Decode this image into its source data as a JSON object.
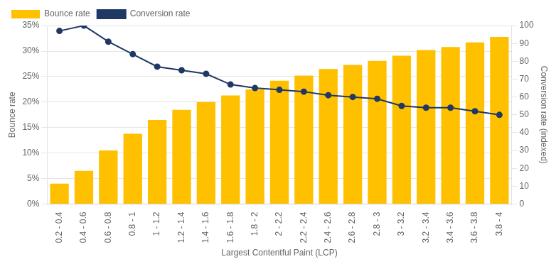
{
  "chart_data": {
    "type": "bar",
    "categories": [
      "0.2 - 0.4",
      "0.4 - 0.6",
      "0.6 - 0.8",
      "0.8 - 1",
      "1 - 1.2",
      "1.2 - 1.4",
      "1.4 - 1.6",
      "1.6 - 1.8",
      "1.8 - 2",
      "2 - 2.2",
      "2.2 - 2.4",
      "2.4 - 2.6",
      "2.6 - 2.8",
      "2.8 - 3",
      "3 - 3.2",
      "3.2 - 3.4",
      "3.4 - 3.6",
      "3.6 - 3.8",
      "3.8 - 4"
    ],
    "series": [
      {
        "name": "Bounce rate",
        "type": "bar",
        "color": "#FFC000",
        "values": [
          0.04,
          0.065,
          0.105,
          0.138,
          0.165,
          0.185,
          0.2,
          0.213,
          0.225,
          0.242,
          0.252,
          0.265,
          0.273,
          0.281,
          0.291,
          0.302,
          0.308,
          0.317,
          0.328
        ]
      },
      {
        "name": "Conversion rate",
        "type": "line",
        "axis": "y2",
        "color": "#1F3864",
        "marker": "o",
        "values": [
          97,
          100,
          91,
          84,
          77,
          75,
          73,
          67,
          65,
          64,
          63,
          61,
          60,
          59,
          55,
          54,
          54,
          52,
          50
        ]
      }
    ],
    "xlabel": "Largest Contentful Paint (LCP)",
    "ylabel": "Bounce rate",
    "y2label": "Conversion rate (indexed)",
    "ylim": [
      0,
      0.3501
    ],
    "yticks": [
      {
        "value": 0,
        "label": "0%"
      },
      {
        "value": 0.05,
        "label": "5%"
      },
      {
        "value": 0.1,
        "label": "10%"
      },
      {
        "value": 0.15,
        "label": "15%"
      },
      {
        "value": 0.2,
        "label": "20%"
      },
      {
        "value": 0.25,
        "label": "25%"
      },
      {
        "value": 0.3,
        "label": "30%"
      },
      {
        "value": 0.35,
        "label": "35%"
      }
    ],
    "y2lim": [
      0,
      100.03
    ],
    "y2ticks": [
      0,
      10,
      20,
      30,
      40,
      50,
      60,
      70,
      80,
      90,
      100
    ],
    "grid": true,
    "legend": "top"
  }
}
